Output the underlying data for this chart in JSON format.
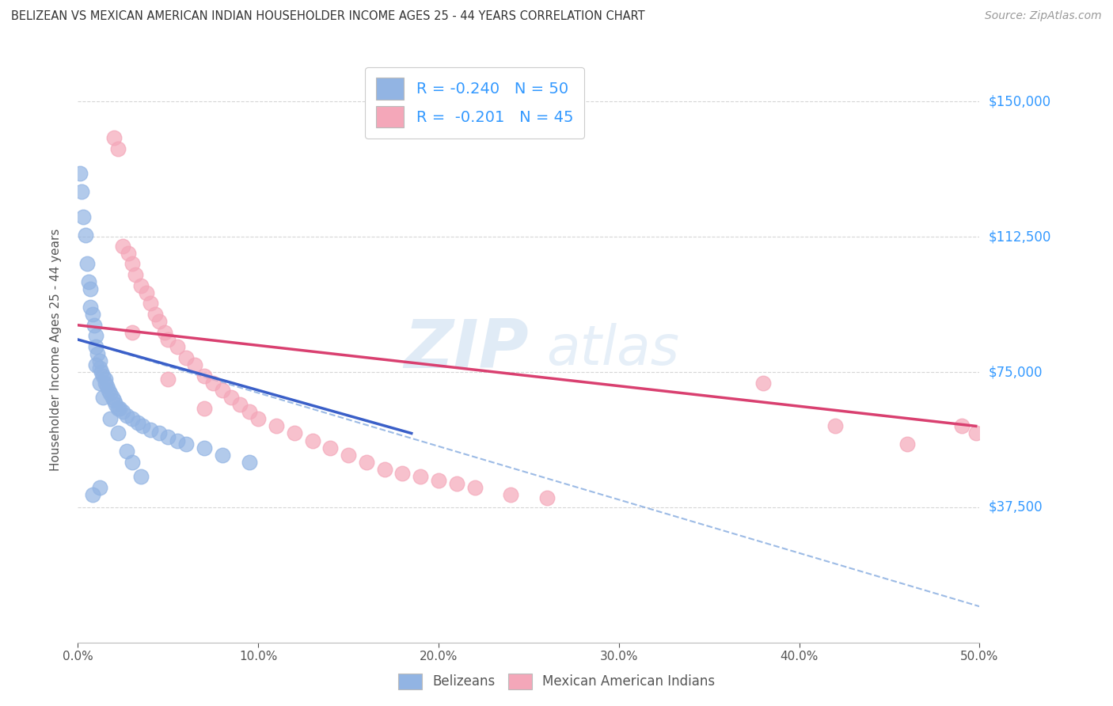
{
  "title": "BELIZEAN VS MEXICAN AMERICAN INDIAN HOUSEHOLDER INCOME AGES 25 - 44 YEARS CORRELATION CHART",
  "source": "Source: ZipAtlas.com",
  "ylabel": "Householder Income Ages 25 - 44 years",
  "xlabel_ticks": [
    "0.0%",
    "10.0%",
    "20.0%",
    "30.0%",
    "40.0%",
    "50.0%"
  ],
  "xlabel_vals": [
    0.0,
    0.1,
    0.2,
    0.3,
    0.4,
    0.5
  ],
  "ytick_labels": [
    "$37,500",
    "$75,000",
    "$112,500",
    "$150,000"
  ],
  "ytick_vals": [
    37500,
    75000,
    112500,
    150000
  ],
  "ylim": [
    0,
    162500
  ],
  "xlim": [
    0.0,
    0.5
  ],
  "blue_color": "#92b4e3",
  "pink_color": "#f4a7b9",
  "blue_line_color": "#3a5fc8",
  "pink_line_color": "#d94070",
  "dashed_line_color": "#92b4e3",
  "watermark_zip": "ZIP",
  "watermark_atlas": "atlas",
  "blue_scatter_x": [
    0.001,
    0.002,
    0.003,
    0.004,
    0.005,
    0.006,
    0.007,
    0.007,
    0.008,
    0.009,
    0.01,
    0.01,
    0.011,
    0.012,
    0.012,
    0.013,
    0.014,
    0.015,
    0.015,
    0.016,
    0.017,
    0.018,
    0.019,
    0.02,
    0.021,
    0.022,
    0.023,
    0.025,
    0.027,
    0.03,
    0.033,
    0.036,
    0.04,
    0.045,
    0.05,
    0.055,
    0.06,
    0.07,
    0.08,
    0.095,
    0.01,
    0.012,
    0.014,
    0.018,
    0.022,
    0.027,
    0.03,
    0.035,
    0.012,
    0.008
  ],
  "blue_scatter_y": [
    130000,
    125000,
    118000,
    113000,
    105000,
    100000,
    98000,
    93000,
    91000,
    88000,
    85000,
    82000,
    80000,
    78000,
    76000,
    75000,
    74000,
    73000,
    72000,
    71000,
    70000,
    69000,
    68000,
    67000,
    66000,
    65000,
    65000,
    64000,
    63000,
    62000,
    61000,
    60000,
    59000,
    58000,
    57000,
    56000,
    55000,
    54000,
    52000,
    50000,
    77000,
    72000,
    68000,
    62000,
    58000,
    53000,
    50000,
    46000,
    43000,
    41000
  ],
  "pink_scatter_x": [
    0.02,
    0.022,
    0.025,
    0.028,
    0.03,
    0.032,
    0.035,
    0.038,
    0.04,
    0.043,
    0.045,
    0.048,
    0.05,
    0.055,
    0.06,
    0.065,
    0.07,
    0.075,
    0.08,
    0.085,
    0.09,
    0.095,
    0.1,
    0.11,
    0.12,
    0.13,
    0.14,
    0.15,
    0.16,
    0.17,
    0.18,
    0.19,
    0.2,
    0.21,
    0.22,
    0.24,
    0.26,
    0.03,
    0.05,
    0.07,
    0.38,
    0.42,
    0.46,
    0.49,
    0.498
  ],
  "pink_scatter_y": [
    140000,
    137000,
    110000,
    108000,
    105000,
    102000,
    99000,
    97000,
    94000,
    91000,
    89000,
    86000,
    84000,
    82000,
    79000,
    77000,
    74000,
    72000,
    70000,
    68000,
    66000,
    64000,
    62000,
    60000,
    58000,
    56000,
    54000,
    52000,
    50000,
    48000,
    47000,
    46000,
    45000,
    44000,
    43000,
    41000,
    40000,
    86000,
    73000,
    65000,
    72000,
    60000,
    55000,
    60000,
    58000
  ],
  "blue_line_x": [
    0.0,
    0.185
  ],
  "blue_line_y": [
    84000,
    58000
  ],
  "pink_line_x": [
    0.0,
    0.498
  ],
  "pink_line_y": [
    88000,
    60000
  ],
  "dashed_line_x": [
    0.0,
    0.5
  ],
  "dashed_line_y": [
    84000,
    10000
  ],
  "legend_footer_blue": "Belizeans",
  "legend_footer_pink": "Mexican American Indians"
}
